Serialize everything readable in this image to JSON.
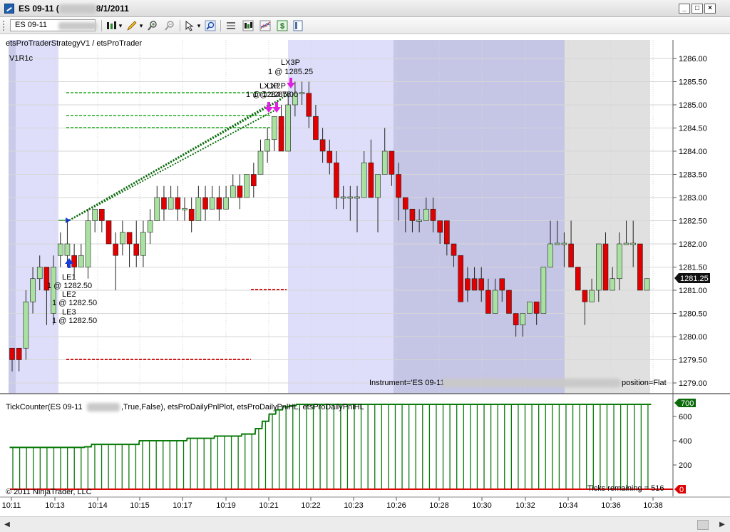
{
  "window": {
    "title_prefix": "ES 09-11 (",
    "title_suffix": "8/1/2011",
    "minimize_glyph": "_",
    "restore_glyph": "□",
    "close_glyph": "×"
  },
  "toolbar": {
    "instrument": "ES 09-11",
    "dropdown_glyph": "▾",
    "icons": [
      "bars-icon",
      "pencil-icon",
      "zoom-in-icon",
      "zoom-out-icon",
      "cursor-icon",
      "magnifier-icon",
      "properties-icon",
      "candles-icon",
      "chart-lines-icon",
      "dollar-icon",
      "panel-icon"
    ]
  },
  "chart": {
    "strategy_label": "etsProTraderStrategyV1 / etsProTrader",
    "panel_label": "V1R1c",
    "instrument_text_left": "Instrument='ES 09-11",
    "instrument_text_right": "position=Flat",
    "current_price_tag": "1281.25",
    "y_ticks": [
      "1286.00",
      "1285.50",
      "1285.00",
      "1284.50",
      "1284.00",
      "1283.50",
      "1283.00",
      "1282.50",
      "1282.00",
      "1281.50",
      "1281.00",
      "1280.50",
      "1280.00",
      "1279.50",
      "1279.00"
    ],
    "x_ticks": [
      "10:11",
      "10:13",
      "10:14",
      "10:15",
      "10:17",
      "10:19",
      "10:21",
      "10:22",
      "10:23",
      "10:26",
      "10:28",
      "10:30",
      "10:32",
      "10:34",
      "10:36",
      "10:38"
    ],
    "entries": [
      {
        "label": "LE1",
        "price": "1 @ 1282.50"
      },
      {
        "label": "LE2",
        "price": "1 @ 1282.50"
      },
      {
        "label": "LE3",
        "price": "1 @ 1282.50"
      }
    ],
    "exits": [
      {
        "label": "LX3P",
        "price": "1 @ 1285.25"
      },
      {
        "label": "LX1P",
        "price": "1 @ 1284.75"
      },
      {
        "label": "LX2P",
        "price": "1 @ 1285.00"
      }
    ],
    "up_color": "#a9e2a0",
    "down_color": "#e00000",
    "target_line_color": "#22aa22",
    "stop_line_color": "#cc0000",
    "session_shade_light": "#dedefa",
    "session_shade_dark": "#c5c5e6",
    "session_shade_gray": "#e0e0e0"
  },
  "indicator": {
    "label_prefix": "TickCounter(ES  09-11",
    "label_suffix": ",True,False),  etsProDailyPnlPlot,  etsProDailyPnlHL,  etsProDailyPnlHL",
    "y_ticks": [
      "600",
      "400",
      "200"
    ],
    "value_tag": "700",
    "zero_tag": "0",
    "ticks_remaining": "Ticks remaining = 516",
    "copyright": "© 2011 NinjaTrader, LLC",
    "bar_color": "#0a7a0a",
    "baseline_color": "#dd0000"
  }
}
